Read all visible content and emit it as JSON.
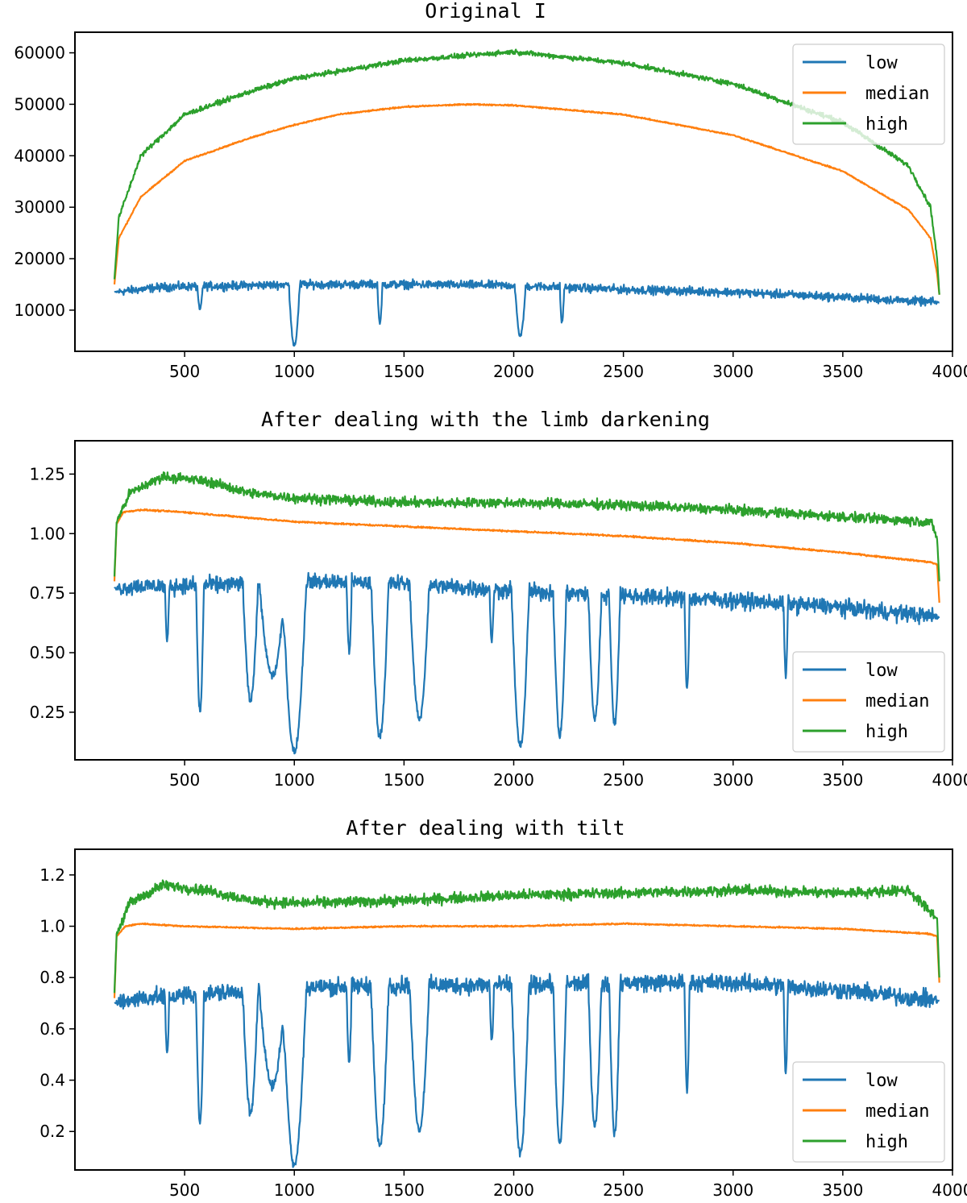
{
  "chart_data": [
    {
      "type": "line",
      "title": "Original I",
      "xlabel": "",
      "ylabel": "",
      "xlim": [
        0,
        4000
      ],
      "ylim": [
        2000,
        64000
      ],
      "xticks": [
        500,
        1000,
        1500,
        2000,
        2500,
        3000,
        3500,
        4000
      ],
      "yticks": [
        10000,
        20000,
        30000,
        40000,
        50000,
        60000
      ],
      "legend": [
        "low",
        "median",
        "high"
      ],
      "legend_loc": "upper right",
      "series": [
        {
          "name": "low",
          "color": "#1f77b4",
          "noise": 1200,
          "points": [
            [
              180,
              13500
            ],
            [
              400,
              14500
            ],
            [
              800,
              14800
            ],
            [
              1000,
              15000
            ],
            [
              1500,
              15000
            ],
            [
              2000,
              14800
            ],
            [
              2500,
              14000
            ],
            [
              3000,
              13500
            ],
            [
              3500,
              12500
            ],
            [
              3940,
              11500
            ]
          ],
          "dips": [
            [
              570,
              10000,
              12
            ],
            [
              1000,
              3000,
              25
            ],
            [
              1390,
              7500,
              12
            ],
            [
              2030,
              5000,
              25
            ],
            [
              2220,
              7500,
              10
            ]
          ]
        },
        {
          "name": "median",
          "color": "#ff7f0e",
          "noise": 200,
          "points": [
            [
              180,
              15000
            ],
            [
              200,
              24000
            ],
            [
              300,
              32000
            ],
            [
              500,
              39000
            ],
            [
              800,
              43500
            ],
            [
              1000,
              46000
            ],
            [
              1200,
              48000
            ],
            [
              1500,
              49500
            ],
            [
              1800,
              50000
            ],
            [
              2000,
              49800
            ],
            [
              2500,
              48000
            ],
            [
              3000,
              44000
            ],
            [
              3500,
              37000
            ],
            [
              3800,
              29500
            ],
            [
              3900,
              24000
            ],
            [
              3930,
              17000
            ],
            [
              3940,
              13000
            ]
          ],
          "dips": []
        },
        {
          "name": "high",
          "color": "#2ca02c",
          "noise": 700,
          "points": [
            [
              180,
              16000
            ],
            [
              200,
              28000
            ],
            [
              300,
              40000
            ],
            [
              500,
              48000
            ],
            [
              800,
              52500
            ],
            [
              1000,
              55000
            ],
            [
              1500,
              58500
            ],
            [
              2000,
              60200
            ],
            [
              2500,
              58000
            ],
            [
              3000,
              54000
            ],
            [
              3500,
              46500
            ],
            [
              3800,
              38000
            ],
            [
              3900,
              30000
            ],
            [
              3930,
              20000
            ],
            [
              3940,
              13000
            ]
          ],
          "dips": []
        }
      ]
    },
    {
      "type": "line",
      "title": "After dealing with the limb darkening",
      "xlabel": "",
      "ylabel": "",
      "xlim": [
        0,
        4000
      ],
      "ylim": [
        0.05,
        1.39
      ],
      "xticks": [
        500,
        1000,
        1500,
        2000,
        2500,
        3000,
        3500,
        4000
      ],
      "yticks": [
        0.25,
        0.5,
        0.75,
        1.0,
        1.25
      ],
      "ytick_labels": [
        "0.25",
        "0.50",
        "0.75",
        "1.00",
        "1.25"
      ],
      "legend": [
        "low",
        "median",
        "high"
      ],
      "legend_loc": "lower right",
      "series": [
        {
          "name": "low",
          "color": "#1f77b4",
          "noise": 0.05,
          "points": [
            [
              180,
              0.77
            ],
            [
              300,
              0.78
            ],
            [
              500,
              0.78
            ],
            [
              1000,
              0.8
            ],
            [
              1500,
              0.79
            ],
            [
              2000,
              0.76
            ],
            [
              2500,
              0.74
            ],
            [
              3000,
              0.72
            ],
            [
              3500,
              0.69
            ],
            [
              3940,
              0.65
            ]
          ],
          "dips": [
            [
              420,
              0.55,
              10
            ],
            [
              570,
              0.25,
              18
            ],
            [
              800,
              0.3,
              35
            ],
            [
              900,
              0.4,
              60
            ],
            [
              1000,
              0.08,
              55
            ],
            [
              1250,
              0.5,
              12
            ],
            [
              1390,
              0.15,
              40
            ],
            [
              1570,
              0.22,
              45
            ],
            [
              1900,
              0.55,
              10
            ],
            [
              2030,
              0.1,
              40
            ],
            [
              2210,
              0.15,
              30
            ],
            [
              2370,
              0.22,
              30
            ],
            [
              2460,
              0.2,
              25
            ],
            [
              2790,
              0.35,
              12
            ],
            [
              3240,
              0.4,
              10
            ]
          ]
        },
        {
          "name": "median",
          "color": "#ff7f0e",
          "noise": 0.005,
          "points": [
            [
              180,
              0.8
            ],
            [
              190,
              1.04
            ],
            [
              220,
              1.09
            ],
            [
              300,
              1.1
            ],
            [
              500,
              1.09
            ],
            [
              1000,
              1.05
            ],
            [
              1500,
              1.03
            ],
            [
              2000,
              1.01
            ],
            [
              2500,
              0.99
            ],
            [
              3000,
              0.96
            ],
            [
              3500,
              0.92
            ],
            [
              3900,
              0.88
            ],
            [
              3930,
              0.87
            ],
            [
              3940,
              0.71
            ]
          ],
          "dips": []
        },
        {
          "name": "high",
          "color": "#2ca02c",
          "noise": 0.03,
          "points": [
            [
              180,
              0.82
            ],
            [
              190,
              1.05
            ],
            [
              250,
              1.17
            ],
            [
              400,
              1.24
            ],
            [
              600,
              1.22
            ],
            [
              800,
              1.17
            ],
            [
              1000,
              1.15
            ],
            [
              1500,
              1.13
            ],
            [
              2000,
              1.13
            ],
            [
              2500,
              1.12
            ],
            [
              3000,
              1.1
            ],
            [
              3500,
              1.07
            ],
            [
              3900,
              1.05
            ],
            [
              3930,
              0.98
            ],
            [
              3940,
              0.8
            ]
          ],
          "dips": []
        }
      ]
    },
    {
      "type": "line",
      "title": "After dealing with tilt",
      "xlabel": "",
      "ylabel": "",
      "xlim": [
        0,
        4000
      ],
      "ylim": [
        0.05,
        1.3
      ],
      "xticks": [
        500,
        1000,
        1500,
        2000,
        2500,
        3000,
        3500,
        4000
      ],
      "yticks": [
        0.2,
        0.4,
        0.6,
        0.8,
        1.0,
        1.2
      ],
      "ytick_labels": [
        "0.2",
        "0.4",
        "0.6",
        "0.8",
        "1.0",
        "1.2"
      ],
      "legend": [
        "low",
        "median",
        "high"
      ],
      "legend_loc": "lower right",
      "series": [
        {
          "name": "low",
          "color": "#1f77b4",
          "noise": 0.05,
          "points": [
            [
              180,
              0.7
            ],
            [
              300,
              0.72
            ],
            [
              500,
              0.73
            ],
            [
              1000,
              0.76
            ],
            [
              1500,
              0.77
            ],
            [
              2000,
              0.77
            ],
            [
              2500,
              0.78
            ],
            [
              3000,
              0.78
            ],
            [
              3500,
              0.75
            ],
            [
              3940,
              0.71
            ]
          ],
          "dips": [
            [
              420,
              0.5,
              10
            ],
            [
              570,
              0.23,
              18
            ],
            [
              800,
              0.27,
              35
            ],
            [
              900,
              0.38,
              60
            ],
            [
              1000,
              0.07,
              55
            ],
            [
              1250,
              0.47,
              12
            ],
            [
              1390,
              0.14,
              40
            ],
            [
              1570,
              0.21,
              45
            ],
            [
              1900,
              0.55,
              10
            ],
            [
              2030,
              0.11,
              40
            ],
            [
              2210,
              0.15,
              30
            ],
            [
              2370,
              0.22,
              30
            ],
            [
              2460,
              0.19,
              25
            ],
            [
              2790,
              0.37,
              12
            ],
            [
              3240,
              0.42,
              10
            ]
          ]
        },
        {
          "name": "median",
          "color": "#ff7f0e",
          "noise": 0.004,
          "points": [
            [
              180,
              0.72
            ],
            [
              190,
              0.96
            ],
            [
              230,
              1.0
            ],
            [
              300,
              1.01
            ],
            [
              500,
              1.0
            ],
            [
              1000,
              0.99
            ],
            [
              1500,
              1.0
            ],
            [
              2000,
              1.0
            ],
            [
              2500,
              1.01
            ],
            [
              3000,
              1.0
            ],
            [
              3500,
              0.99
            ],
            [
              3900,
              0.97
            ],
            [
              3930,
              0.96
            ],
            [
              3940,
              0.78
            ]
          ],
          "dips": []
        },
        {
          "name": "high",
          "color": "#2ca02c",
          "noise": 0.03,
          "points": [
            [
              180,
              0.74
            ],
            [
              190,
              0.97
            ],
            [
              250,
              1.09
            ],
            [
              400,
              1.16
            ],
            [
              600,
              1.14
            ],
            [
              800,
              1.1
            ],
            [
              1000,
              1.09
            ],
            [
              1500,
              1.1
            ],
            [
              2000,
              1.12
            ],
            [
              2500,
              1.13
            ],
            [
              3000,
              1.14
            ],
            [
              3500,
              1.13
            ],
            [
              3800,
              1.14
            ],
            [
              3930,
              1.03
            ],
            [
              3940,
              0.8
            ]
          ],
          "dips": []
        }
      ]
    }
  ]
}
